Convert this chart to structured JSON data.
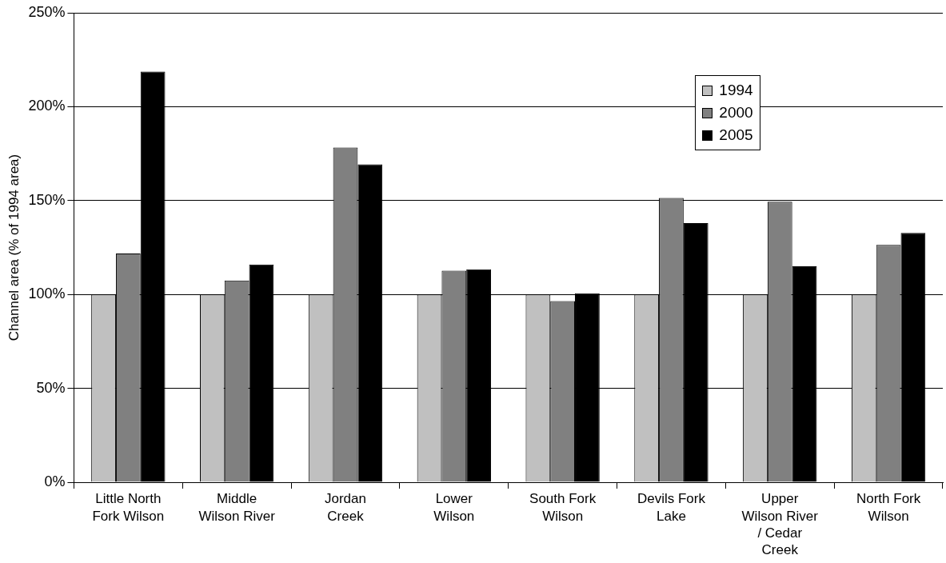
{
  "chart_data": {
    "type": "bar",
    "ylabel": "Channel area (% of 1994 area)",
    "categories": [
      "Little North Fork Wilson",
      "Middle Wilson River",
      "Jordan Creek",
      "Lower Wilson",
      "South Fork Wilson",
      "Devils Fork Lake",
      "Upper Wilson River / Cedar Creek",
      "North Fork Wilson"
    ],
    "series": [
      {
        "name": "1994",
        "color": "#c0c0c0",
        "values": [
          100,
          100,
          100,
          100,
          100,
          100,
          100,
          100
        ]
      },
      {
        "name": "2000",
        "color": "#808080",
        "values": [
          121.8,
          107.4,
          178.2,
          112.7,
          96.5,
          151.4,
          149.4,
          126.4
        ]
      },
      {
        "name": "2005",
        "color": "#000000",
        "values": [
          218.7,
          115.9,
          169.3,
          113.4,
          100.6,
          138.0,
          115.0,
          132.8
        ]
      }
    ],
    "ylim": [
      0,
      250
    ],
    "yticks": [
      {
        "value": 0,
        "label": "0%"
      },
      {
        "value": 50,
        "label": "50%"
      },
      {
        "value": 100,
        "label": "100%"
      },
      {
        "value": 150,
        "label": "150%"
      },
      {
        "value": 200,
        "label": "200%"
      },
      {
        "value": 250,
        "label": "250%"
      }
    ],
    "grid": "y",
    "legend": "top right"
  }
}
